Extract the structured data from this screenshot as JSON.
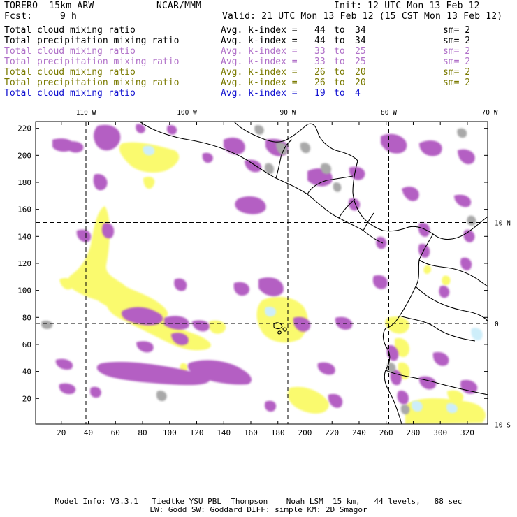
{
  "header": {
    "model": "TORERO  15km ARW",
    "org": "NCAR/MMM",
    "init": "Init: 12 UTC Mon 13 Feb 12",
    "fcst_label": "Fcst:",
    "fcst_value": "9 h",
    "valid": "Valid: 21 UTC Mon 13 Feb 12 (15 CST Mon 13 Feb 12)"
  },
  "legend": [
    {
      "field": "Total cloud mixing ratio",
      "kindex_label": "Avg. k-index =",
      "from": "44",
      "to_word": "to",
      "to": "34",
      "sm": "sm= 2",
      "color": "#000000"
    },
    {
      "field": "Total precipitation mixing ratio",
      "kindex_label": "Avg. k-index =",
      "from": "44",
      "to_word": "to",
      "to": "34",
      "sm": "sm= 2",
      "color": "#000000"
    },
    {
      "field": "Total cloud mixing ratio",
      "kindex_label": "Avg. k-index =",
      "from": "33",
      "to_word": "to",
      "to": "25",
      "sm": "sm= 2",
      "color": "#b070c8"
    },
    {
      "field": "Total precipitation mixing ratio",
      "kindex_label": "Avg. k-index =",
      "from": "33",
      "to_word": "to",
      "to": "25",
      "sm": "sm= 2",
      "color": "#b070c8"
    },
    {
      "field": "Total cloud mixing ratio",
      "kindex_label": "Avg. k-index =",
      "from": "26",
      "to_word": "to",
      "to": "20",
      "sm": "sm= 2",
      "color": "#7a7a00"
    },
    {
      "field": "Total precipitation mixing ratio",
      "kindex_label": "Avg. k-index =",
      "from": "26",
      "to_word": "to",
      "to": "20",
      "sm": "sm= 2",
      "color": "#7a7a00"
    },
    {
      "field": "Total cloud mixing ratio",
      "kindex_label": "Avg. k-index =",
      "from": "19",
      "to_word": "to",
      "to": "4",
      "sm": "",
      "color": "#1010d0"
    }
  ],
  "map": {
    "lon_labels": [
      {
        "text": "110 W",
        "lon": -110
      },
      {
        "text": "100 W",
        "lon": -100
      },
      {
        "text": "90 W",
        "lon": -90
      },
      {
        "text": "80 W",
        "lon": -80
      },
      {
        "text": "70 W",
        "lon": -70
      }
    ],
    "lat_labels": [
      {
        "text": "10 N",
        "lat": 10
      },
      {
        "text": "0",
        "lat": 0
      },
      {
        "text": "10 S",
        "lat": -10
      }
    ],
    "grid_x_ticks": [
      20,
      40,
      60,
      80,
      100,
      120,
      140,
      160,
      180,
      200,
      220,
      240,
      260,
      280,
      300,
      320
    ],
    "grid_y_ticks": [
      20,
      40,
      60,
      80,
      100,
      120,
      140,
      160,
      180,
      200,
      220
    ],
    "grid_x_range": [
      1,
      335
    ],
    "grid_y_range": [
      1,
      225
    ],
    "colors": {
      "magenta_cloud": "#b45fc3",
      "yellow_precip": "#fafa6e",
      "gray_cloud": "#a9a9a9",
      "light_blue": "#cdeefa",
      "coast": "#000000"
    }
  },
  "footer": {
    "line1": "Model Info: V3.3.1   Tiedtke YSU PBL  Thompson    Noah LSM  15 km,   44 levels,   88 sec",
    "line2": "LW: Godd SW: Goddard DIFF: simple KM: 2D Smagor"
  }
}
